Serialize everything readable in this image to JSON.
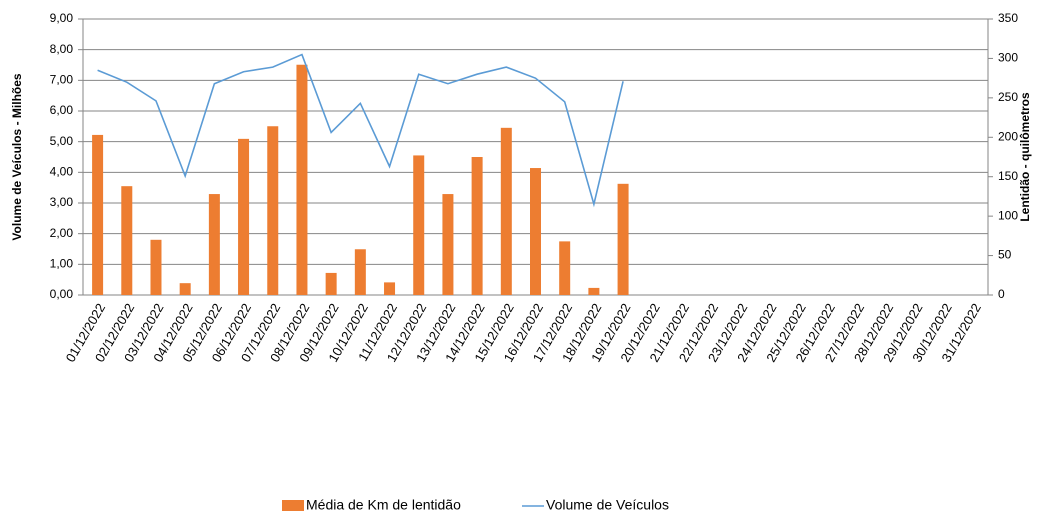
{
  "chart_data": {
    "type": "bar-line",
    "y_label": "Volume de Veículos - Milhões",
    "y2_label": "Lentidão - quilômetros",
    "categories": [
      "01/12/2022",
      "02/12/2022",
      "03/12/2022",
      "04/12/2022",
      "05/12/2022",
      "06/12/2022",
      "07/12/2022",
      "08/12/2022",
      "09/12/2022",
      "10/12/2022",
      "11/12/2022",
      "12/12/2022",
      "13/12/2022",
      "14/12/2022",
      "15/12/2022",
      "16/12/2022",
      "17/12/2022",
      "18/12/2022",
      "19/12/2022",
      "20/12/2022",
      "21/12/2022",
      "22/12/2022",
      "23/12/2022",
      "24/12/2022",
      "25/12/2022",
      "26/12/2022",
      "27/12/2022",
      "28/12/2022",
      "29/12/2022",
      "30/12/2022",
      "31/12/2022"
    ],
    "series": [
      {
        "name": "Média de Km de lentidão",
        "type": "bar",
        "axis": "y2",
        "color": "#ed7d31",
        "values": [
          203,
          138,
          70,
          15,
          128,
          198,
          214,
          292,
          28,
          58,
          16,
          177,
          128,
          175,
          212,
          161,
          68,
          9,
          141,
          null,
          null,
          null,
          null,
          null,
          null,
          null,
          null,
          null,
          null,
          null,
          null
        ]
      },
      {
        "name": "Volume de Veículos",
        "type": "line",
        "axis": "y",
        "color": "#5b9bd5",
        "values": [
          7.33,
          6.94,
          6.33,
          3.88,
          6.89,
          7.28,
          7.43,
          7.84,
          5.3,
          6.25,
          4.19,
          7.2,
          6.89,
          7.2,
          7.43,
          7.07,
          6.3,
          2.96,
          6.97,
          null,
          null,
          null,
          null,
          null,
          null,
          null,
          null,
          null,
          null,
          null,
          null
        ]
      }
    ],
    "ylim": [
      0,
      9
    ],
    "yticks": [
      {
        "value": 0,
        "label": "0,00"
      },
      {
        "value": 1,
        "label": "1,00"
      },
      {
        "value": 2,
        "label": "2,00"
      },
      {
        "value": 3,
        "label": "3,00"
      },
      {
        "value": 4,
        "label": "4,00"
      },
      {
        "value": 5,
        "label": "5,00"
      },
      {
        "value": 6,
        "label": "6,00"
      },
      {
        "value": 7,
        "label": "7,00"
      },
      {
        "value": 8,
        "label": "8,00"
      },
      {
        "value": 9,
        "label": "9,00"
      }
    ],
    "y2lim": [
      0,
      350
    ],
    "y2ticks": [
      0,
      50,
      100,
      150,
      200,
      250,
      300,
      350
    ],
    "grid": true,
    "legend": "bottom"
  }
}
